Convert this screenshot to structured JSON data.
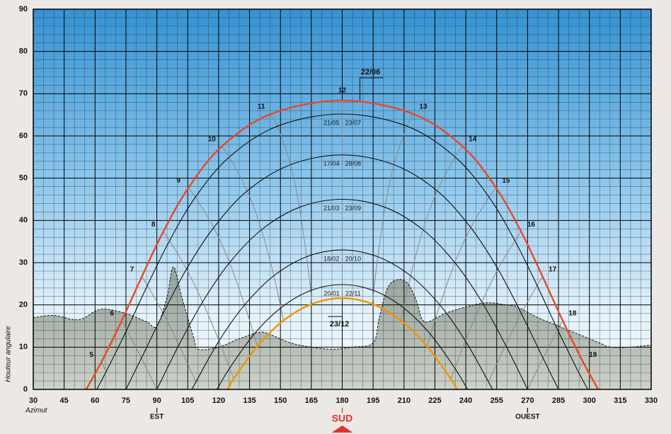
{
  "chart_data": {
    "type": "line",
    "y_label": "Houteur angulaire",
    "x_label": "Azimut",
    "xlim": [
      30,
      330
    ],
    "ylim": [
      0,
      90
    ],
    "xticks": [
      30,
      45,
      60,
      75,
      90,
      105,
      120,
      135,
      150,
      165,
      180,
      195,
      210,
      225,
      240,
      255,
      270,
      285,
      300,
      315,
      330
    ],
    "yticks": [
      0,
      10,
      20,
      30,
      40,
      50,
      60,
      70,
      80,
      90
    ],
    "grid": true,
    "direction_labels": [
      {
        "value": 90,
        "label": "EST"
      },
      {
        "value": 180,
        "label": "SUD"
      },
      {
        "value": 270,
        "label": "OUEST"
      }
    ],
    "series": [
      {
        "name": "22/06",
        "color": "#e8492a",
        "x": [
          55.7,
          63.1,
          73,
          82.7,
          93.1,
          105.3,
          121.5,
          145.5,
          180,
          214.5,
          238.5,
          254.7,
          266.9,
          277.3,
          287,
          296.9,
          304.3
        ],
        "values": [
          0,
          6.5,
          16.3,
          26.7,
          37.3,
          47.7,
          57.5,
          65.2,
          68.4,
          65.2,
          57.5,
          47.7,
          37.3,
          26.7,
          16.3,
          6.5,
          0
        ]
      },
      {
        "name": "21/05 · 23/07",
        "color": "#111111",
        "x": [
          60.8,
          65.4,
          75.4,
          85.4,
          96.2,
          108.7,
          125.2,
          148.5,
          180,
          211.5,
          234.8,
          251.3,
          263.8,
          274.6,
          284.6,
          294.6,
          299.2
        ],
        "values": [
          0,
          4.2,
          14.1,
          24.6,
          35.2,
          45.5,
          55.0,
          62.3,
          65.2,
          62.3,
          55.0,
          45.5,
          35.2,
          24.6,
          14.1,
          4.2,
          0
        ]
      },
      {
        "name": "17/04 · 28/08",
        "color": "#111111",
        "x": [
          75,
          82.5,
          93.1,
          104.4,
          117.6,
          133.9,
          154.9,
          180,
          205.1,
          226.1,
          242.4,
          255.6,
          266.9,
          277.5,
          285
        ],
        "values": [
          0,
          7.4,
          18.0,
          28.5,
          38.3,
          47.0,
          53.2,
          55.5,
          53.2,
          47.0,
          38.3,
          28.5,
          18.0,
          7.4,
          0
        ]
      },
      {
        "name": "21/03 · 23/09",
        "color": "#111111",
        "x": [
          90,
          100.7,
          112.2,
          125.3,
          140.8,
          159.2,
          180,
          200.8,
          219.2,
          234.7,
          247.8,
          259.3,
          270
        ],
        "values": [
          0,
          10.5,
          20.7,
          30,
          37.8,
          43.1,
          45,
          43.1,
          37.8,
          30,
          20.7,
          10.5,
          0
        ]
      },
      {
        "name": "18/02 · 20/10",
        "color": "#111111",
        "x": [
          107,
          109,
          120.2,
          132.6,
          146.8,
          162.7,
          180,
          197.3,
          213.2,
          227.4,
          239.8,
          251,
          253
        ],
        "values": [
          0,
          1.8,
          11.5,
          20.0,
          26.9,
          31.4,
          33.0,
          31.4,
          26.9,
          20.0,
          11.5,
          1.8,
          0
        ]
      },
      {
        "name": "20/01 · 22/11",
        "color": "#111111",
        "x": [
          119.2,
          125.3,
          137.1,
          150.2,
          164.7,
          180,
          195.3,
          209.8,
          222.9,
          234.7,
          240.8
        ],
        "values": [
          0,
          5.0,
          13.0,
          19.3,
          23.4,
          24.8,
          23.4,
          19.3,
          13.0,
          5.0,
          0
        ]
      },
      {
        "name": "23/12",
        "color": "#f29400",
        "x": [
          124.3,
          127.3,
          138.8,
          151.5,
          165.3,
          180,
          194.7,
          208.5,
          221.2,
          232.7,
          235.7
        ],
        "values": [
          0,
          2.5,
          10.2,
          16.3,
          20.2,
          21.6,
          20.2,
          16.3,
          10.2,
          2.5,
          0
        ]
      }
    ],
    "hour_lines": [
      {
        "name": "5",
        "x": [
          63.1,
          65.4
        ],
        "values": [
          6.5,
          4.2
        ]
      },
      {
        "name": "6",
        "x": [
          73,
          75.4,
          82.5,
          90
        ],
        "values": [
          16.3,
          14.1,
          7.4,
          0
        ]
      },
      {
        "name": "7",
        "x": [
          82.7,
          85.4,
          93.1,
          100.7,
          109
        ],
        "values": [
          26.7,
          24.6,
          18.0,
          10.5,
          1.8
        ]
      },
      {
        "name": "8",
        "x": [
          93.1,
          96.2,
          104.4,
          112.2,
          120.2,
          125.3,
          127.3
        ],
        "values": [
          37.3,
          35.2,
          28.5,
          20.7,
          11.5,
          5.0,
          2.5
        ]
      },
      {
        "name": "9",
        "x": [
          105.3,
          108.7,
          117.6,
          125.3,
          132.6,
          137.1,
          138.8
        ],
        "values": [
          47.7,
          45.5,
          38.3,
          30,
          20.0,
          13.0,
          10.2
        ]
      },
      {
        "name": "10",
        "x": [
          121.5,
          125.2,
          133.9,
          140.8,
          146.8,
          150.2,
          151.5
        ],
        "values": [
          57.5,
          55.0,
          47.0,
          37.8,
          26.9,
          19.3,
          16.3
        ]
      },
      {
        "name": "11",
        "x": [
          145.5,
          148.5,
          154.9,
          159.2,
          162.7,
          164.7,
          165.3
        ],
        "values": [
          65.2,
          62.3,
          53.2,
          43.1,
          31.4,
          23.4,
          20.2
        ]
      },
      {
        "name": "12",
        "x": [
          180,
          180,
          180,
          180,
          180,
          180,
          180
        ],
        "values": [
          68.4,
          65.2,
          55.5,
          45,
          33.0,
          24.8,
          21.6
        ]
      },
      {
        "name": "13",
        "x": [
          214.5,
          211.5,
          205.1,
          200.8,
          197.3,
          195.3,
          194.7
        ],
        "values": [
          65.2,
          62.3,
          53.2,
          43.1,
          31.4,
          23.4,
          20.2
        ]
      },
      {
        "name": "14",
        "x": [
          238.5,
          234.8,
          226.1,
          219.2,
          213.2,
          209.8,
          208.5
        ],
        "values": [
          57.5,
          55.0,
          47.0,
          37.8,
          26.9,
          19.3,
          16.3
        ]
      },
      {
        "name": "15",
        "x": [
          254.7,
          251.3,
          242.4,
          234.7,
          227.4,
          222.9,
          221.2
        ],
        "values": [
          47.7,
          45.5,
          38.3,
          30,
          20.0,
          13.0,
          10.2
        ]
      },
      {
        "name": "16",
        "x": [
          266.9,
          263.8,
          255.6,
          247.8,
          239.8,
          234.7,
          232.7
        ],
        "values": [
          37.3,
          35.2,
          28.5,
          20.7,
          11.5,
          5.0,
          2.5
        ]
      },
      {
        "name": "17",
        "x": [
          277.3,
          274.6,
          266.9,
          259.3,
          251
        ],
        "values": [
          26.7,
          24.6,
          18.0,
          10.5,
          1.8
        ]
      },
      {
        "name": "18",
        "x": [
          287,
          284.6,
          277.5,
          270
        ],
        "values": [
          16.3,
          14.1,
          7.4,
          0
        ]
      },
      {
        "name": "19",
        "x": [
          296.9,
          294.6
        ],
        "values": [
          6.5,
          4.2
        ]
      }
    ],
    "horizon": {
      "x": [
        30,
        40,
        50,
        55,
        60,
        65,
        75,
        85,
        90,
        95,
        98,
        102,
        108,
        110,
        120,
        130,
        140,
        145,
        155,
        165,
        175,
        185,
        195,
        198,
        202,
        207,
        212,
        216,
        220,
        230,
        240,
        250,
        260,
        265,
        275,
        285,
        295,
        305,
        310,
        320,
        330
      ],
      "values": [
        17,
        17.5,
        16.5,
        17,
        18.5,
        19,
        18,
        16,
        15,
        22,
        29,
        22,
        12,
        9.5,
        10,
        12,
        13.5,
        13,
        11,
        10,
        9.5,
        10,
        11,
        17,
        24,
        26,
        25,
        21,
        16,
        18,
        19.5,
        20.5,
        20,
        19.5,
        17,
        15,
        13,
        11,
        10,
        10,
        10.5
      ]
    }
  }
}
